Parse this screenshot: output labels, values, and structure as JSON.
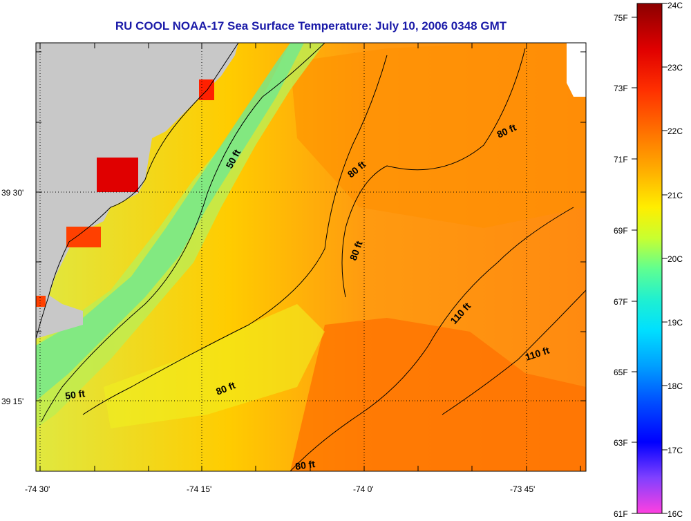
{
  "title": "RU COOL  NOAA-17  Sea Surface Temperature:  July 10, 2006 0348 GMT",
  "map": {
    "lat_labels": [
      "39 30'",
      "39 15'"
    ],
    "lon_labels": [
      "-74 30'",
      "-74 15'",
      "-74 0'",
      "-73 45'"
    ],
    "contour_labels": [
      "50 ft",
      "50 ft",
      "80 ft",
      "80 ft",
      "80 ft",
      "80 ft",
      "80 ft",
      "110 ft",
      "110 ft"
    ],
    "land_color": "#c8c8c8"
  },
  "colorbar": {
    "fahrenheit_labels": [
      "75F",
      "73F",
      "71F",
      "69F",
      "67F",
      "65F",
      "63F",
      "61F"
    ],
    "celsius_labels": [
      "24C",
      "23C",
      "22C",
      "21C",
      "20C",
      "19C",
      "18C",
      "17C",
      "16C"
    ],
    "range_c": [
      16,
      24
    ],
    "range_f": [
      61,
      75.2
    ]
  }
}
